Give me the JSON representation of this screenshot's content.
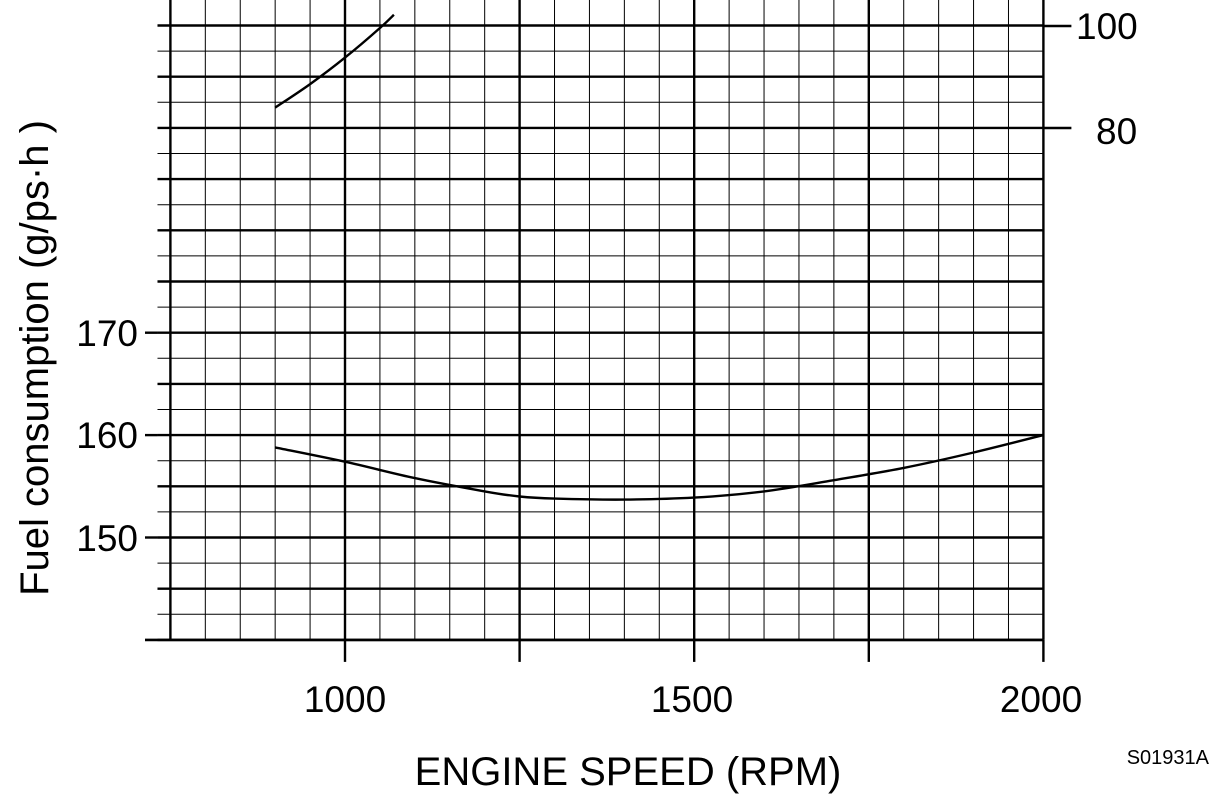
{
  "chart_data": {
    "type": "line",
    "title": "",
    "xlabel": "ENGINE SPEED (RPM)",
    "ylabel": "Fuel consumption (g/ps·h )",
    "xlim": [
      700,
      2000
    ],
    "ylim_left": [
      140,
      202
    ],
    "x_ticks": [
      "1000",
      "1500",
      "2000"
    ],
    "y_ticks_left": [
      "150",
      "160",
      "170"
    ],
    "y_ticks_right": [
      "100",
      "80"
    ],
    "grid": true,
    "series": [
      {
        "axis": "left",
        "x": [
          900,
          1000,
          1100,
          1200,
          1250,
          1300,
          1400,
          1500,
          1600,
          1700,
          1800,
          1900,
          2000
        ],
        "y": [
          158.8,
          157.4,
          155.8,
          154.5,
          154.0,
          153.8,
          153.7,
          153.9,
          154.5,
          155.6,
          156.8,
          158.3,
          160.0
        ]
      },
      {
        "axis": "right",
        "x": [
          900,
          950,
          1000,
          1050,
          1070
        ],
        "y": [
          84.0,
          88.6,
          93.8,
          99.6,
          102.2
        ]
      }
    ],
    "figure_code": "S01931A"
  }
}
